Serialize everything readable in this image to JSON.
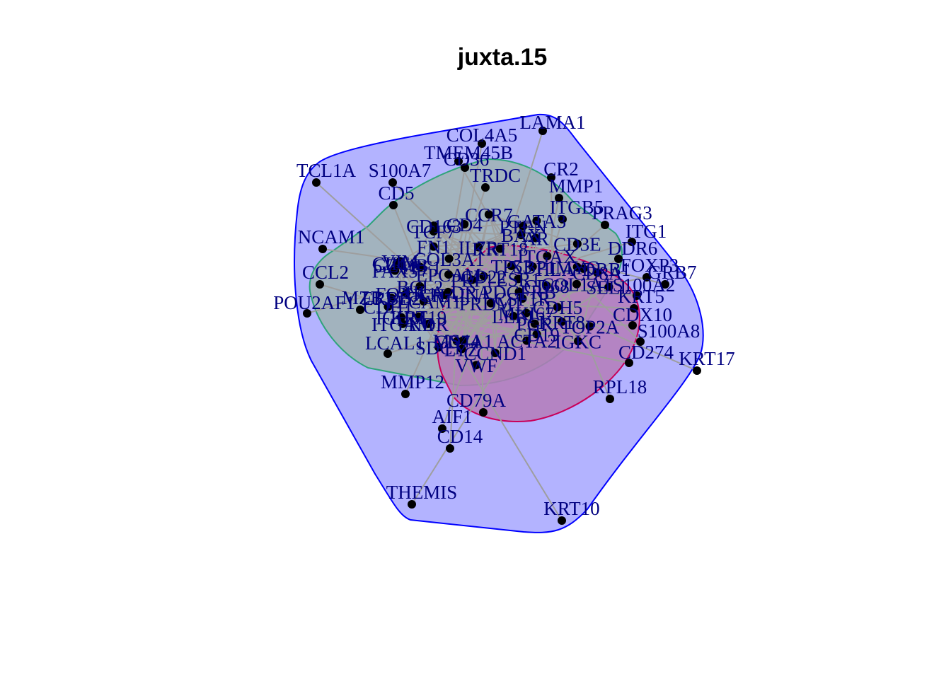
{
  "title": "juxta.15",
  "colors": {
    "outer_hull_fill": "#b3b3ff",
    "outer_hull_stroke": "#0000ff",
    "inner_hull_fill": "#9fb3b3",
    "inner_hull_stroke": "#2ea37a",
    "red_hull_fill": "#b47bb8",
    "red_hull_stroke": "#c8005a",
    "node": "#000000",
    "label": "#000080",
    "edge": "#9e9e9e"
  },
  "nodes": [
    {
      "label": "LAMA1"
    },
    {
      "label": "COL4A5"
    },
    {
      "label": "TMEM45B"
    },
    {
      "label": "CD36"
    },
    {
      "label": "CR2"
    },
    {
      "label": "TCL1A"
    },
    {
      "label": "S100A7"
    },
    {
      "label": "TRDC"
    },
    {
      "label": "MMP1"
    },
    {
      "label": "CD5"
    },
    {
      "label": "ITGB5"
    },
    {
      "label": "PRAG3"
    },
    {
      "label": "ITG1"
    },
    {
      "label": "NCAM1"
    },
    {
      "label": "DDR6"
    },
    {
      "label": "FOXP3"
    },
    {
      "label": "GRB7"
    },
    {
      "label": "CCL2"
    },
    {
      "label": "S100A2"
    },
    {
      "label": "POU2AF1"
    },
    {
      "label": "KRT5"
    },
    {
      "label": "CDX10"
    },
    {
      "label": "S100A8"
    },
    {
      "label": "CD274"
    },
    {
      "label": "KRT17"
    },
    {
      "label": "MZB1"
    },
    {
      "label": "LCAL1"
    },
    {
      "label": "MMP12"
    },
    {
      "label": "RPL18"
    },
    {
      "label": "CD79A"
    },
    {
      "label": "AIF1"
    },
    {
      "label": "CD14"
    },
    {
      "label": "THEMIS"
    },
    {
      "label": "KRT10"
    }
  ]
}
